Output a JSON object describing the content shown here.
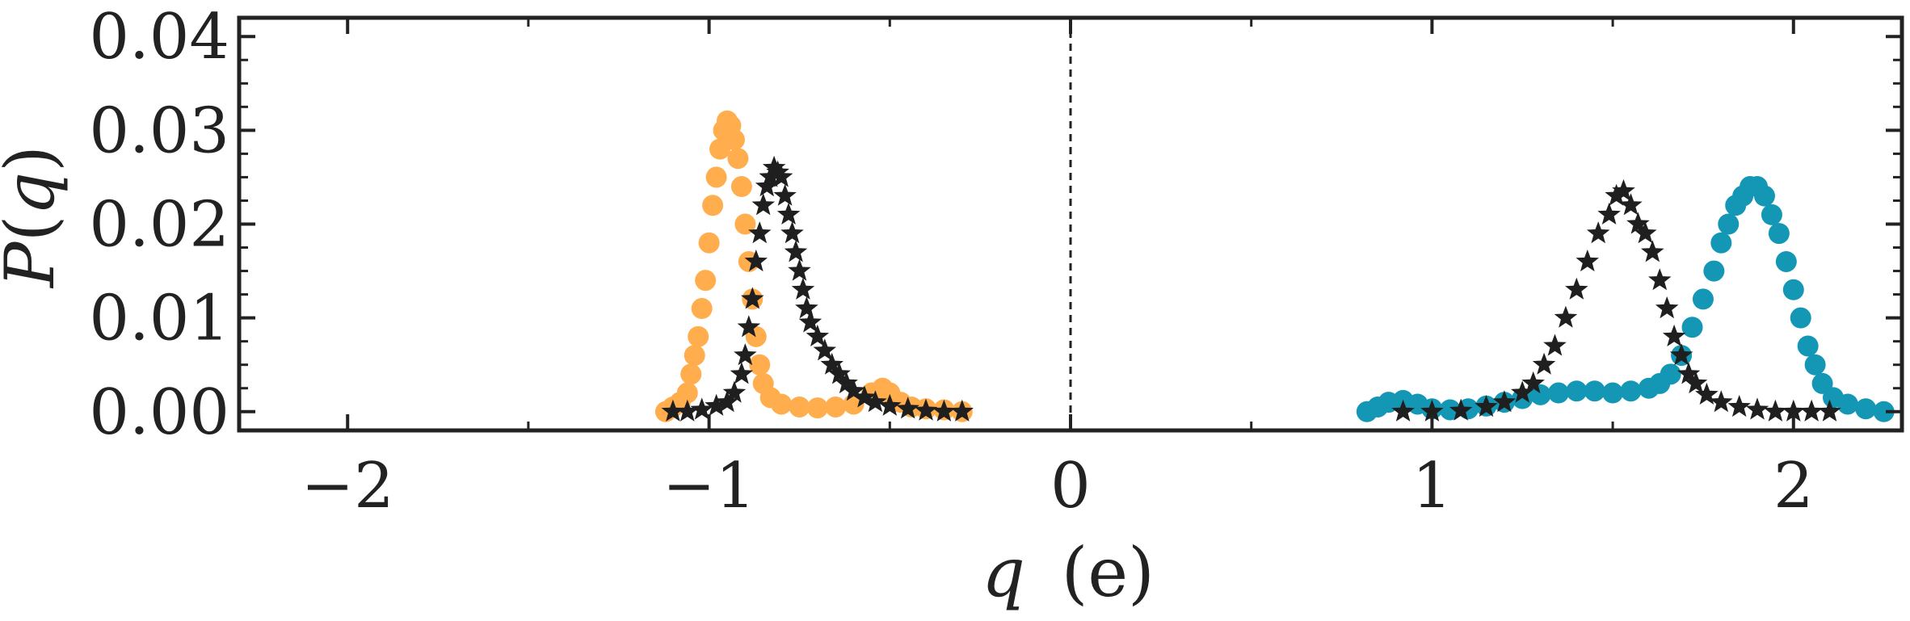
{
  "chart_data": {
    "type": "scatter",
    "title": "",
    "xlabel_var": "q",
    "xlabel_unit": "(e)",
    "ylabel_func": "P",
    "ylabel_var": "q",
    "xlim": [
      -2.3,
      2.3
    ],
    "ylim": [
      -0.002,
      0.042
    ],
    "x_ticks": [
      -2,
      -1,
      0,
      1,
      2
    ],
    "x_tick_labels": [
      "−2",
      "−1",
      "0",
      "1",
      "2"
    ],
    "y_ticks": [
      0.0,
      0.01,
      0.02,
      0.03,
      0.04
    ],
    "y_tick_labels": [
      "0.00",
      "0.01",
      "0.02",
      "0.03",
      "0.04"
    ],
    "vline_x": 0,
    "grid": false,
    "legend": "none",
    "series": [
      {
        "marker": "circle",
        "color": "#ffad4d",
        "points": [
          [
            -1.12,
            0.0
          ],
          [
            -1.1,
            0.0005
          ],
          [
            -1.08,
            0.001
          ],
          [
            -1.06,
            0.002
          ],
          [
            -1.05,
            0.004
          ],
          [
            -1.04,
            0.006
          ],
          [
            -1.03,
            0.008
          ],
          [
            -1.02,
            0.011
          ],
          [
            -1.01,
            0.014
          ],
          [
            -1.0,
            0.018
          ],
          [
            -0.99,
            0.022
          ],
          [
            -0.98,
            0.025
          ],
          [
            -0.97,
            0.028
          ],
          [
            -0.96,
            0.03
          ],
          [
            -0.95,
            0.031
          ],
          [
            -0.94,
            0.0305
          ],
          [
            -0.93,
            0.029
          ],
          [
            -0.92,
            0.027
          ],
          [
            -0.91,
            0.024
          ],
          [
            -0.9,
            0.02
          ],
          [
            -0.89,
            0.016
          ],
          [
            -0.88,
            0.012
          ],
          [
            -0.87,
            0.008
          ],
          [
            -0.86,
            0.005
          ],
          [
            -0.85,
            0.003
          ],
          [
            -0.83,
            0.0015
          ],
          [
            -0.8,
            0.0008
          ],
          [
            -0.75,
            0.0005
          ],
          [
            -0.7,
            0.0004
          ],
          [
            -0.65,
            0.0005
          ],
          [
            -0.6,
            0.0008
          ],
          [
            -0.55,
            0.002
          ],
          [
            -0.52,
            0.0025
          ],
          [
            -0.5,
            0.002
          ],
          [
            -0.47,
            0.001
          ],
          [
            -0.44,
            0.0005
          ],
          [
            -0.4,
            0.0003
          ],
          [
            -0.35,
            0.0002
          ],
          [
            -0.3,
            0.0
          ]
        ]
      },
      {
        "marker": "star",
        "color": "#1f1f1f",
        "points": [
          [
            -1.1,
            0.0
          ],
          [
            -1.06,
            0.0
          ],
          [
            -1.02,
            0.0002
          ],
          [
            -0.98,
            0.0006
          ],
          [
            -0.95,
            0.001
          ],
          [
            -0.93,
            0.002
          ],
          [
            -0.91,
            0.004
          ],
          [
            -0.9,
            0.006
          ],
          [
            -0.89,
            0.009
          ],
          [
            -0.88,
            0.012
          ],
          [
            -0.87,
            0.016
          ],
          [
            -0.86,
            0.019
          ],
          [
            -0.85,
            0.022
          ],
          [
            -0.84,
            0.024
          ],
          [
            -0.83,
            0.025
          ],
          [
            -0.82,
            0.026
          ],
          [
            -0.81,
            0.0255
          ],
          [
            -0.8,
            0.025
          ],
          [
            -0.79,
            0.023
          ],
          [
            -0.78,
            0.021
          ],
          [
            -0.77,
            0.019
          ],
          [
            -0.76,
            0.017
          ],
          [
            -0.75,
            0.015
          ],
          [
            -0.74,
            0.013
          ],
          [
            -0.73,
            0.011
          ],
          [
            -0.72,
            0.0095
          ],
          [
            -0.7,
            0.008
          ],
          [
            -0.68,
            0.0065
          ],
          [
            -0.66,
            0.005
          ],
          [
            -0.64,
            0.004
          ],
          [
            -0.62,
            0.003
          ],
          [
            -0.6,
            0.0022
          ],
          [
            -0.57,
            0.0015
          ],
          [
            -0.54,
            0.001
          ],
          [
            -0.5,
            0.0006
          ],
          [
            -0.45,
            0.0003
          ],
          [
            -0.4,
            0.0001
          ],
          [
            -0.35,
            0.0
          ],
          [
            -0.3,
            0.0
          ],
          [
            0.92,
            0.0
          ],
          [
            1.0,
            0.0
          ],
          [
            1.08,
            0.0001
          ],
          [
            1.15,
            0.0005
          ],
          [
            1.2,
            0.001
          ],
          [
            1.25,
            0.002
          ],
          [
            1.28,
            0.003
          ],
          [
            1.31,
            0.005
          ],
          [
            1.34,
            0.007
          ],
          [
            1.37,
            0.01
          ],
          [
            1.4,
            0.013
          ],
          [
            1.43,
            0.016
          ],
          [
            1.46,
            0.019
          ],
          [
            1.49,
            0.021
          ],
          [
            1.51,
            0.023
          ],
          [
            1.53,
            0.0235
          ],
          [
            1.55,
            0.022
          ],
          [
            1.57,
            0.02
          ],
          [
            1.59,
            0.019
          ],
          [
            1.61,
            0.017
          ],
          [
            1.63,
            0.014
          ],
          [
            1.65,
            0.011
          ],
          [
            1.67,
            0.008
          ],
          [
            1.69,
            0.006
          ],
          [
            1.71,
            0.004
          ],
          [
            1.73,
            0.003
          ],
          [
            1.76,
            0.0018
          ],
          [
            1.8,
            0.001
          ],
          [
            1.85,
            0.0005
          ],
          [
            1.9,
            0.0002
          ],
          [
            1.95,
            0.0
          ],
          [
            2.0,
            0.0
          ],
          [
            2.05,
            0.0
          ],
          [
            2.1,
            0.0
          ]
        ]
      },
      {
        "marker": "circle",
        "color": "#1497b5",
        "points": [
          [
            0.82,
            0.0
          ],
          [
            0.85,
            0.0005
          ],
          [
            0.88,
            0.001
          ],
          [
            0.92,
            0.0012
          ],
          [
            0.96,
            0.0008
          ],
          [
            1.0,
            0.0003
          ],
          [
            1.05,
            0.0002
          ],
          [
            1.1,
            0.0003
          ],
          [
            1.15,
            0.0006
          ],
          [
            1.2,
            0.001
          ],
          [
            1.25,
            0.0014
          ],
          [
            1.3,
            0.0018
          ],
          [
            1.35,
            0.002
          ],
          [
            1.4,
            0.0022
          ],
          [
            1.45,
            0.0022
          ],
          [
            1.5,
            0.002
          ],
          [
            1.55,
            0.0022
          ],
          [
            1.6,
            0.0025
          ],
          [
            1.63,
            0.003
          ],
          [
            1.66,
            0.004
          ],
          [
            1.69,
            0.006
          ],
          [
            1.72,
            0.009
          ],
          [
            1.75,
            0.012
          ],
          [
            1.78,
            0.015
          ],
          [
            1.8,
            0.018
          ],
          [
            1.82,
            0.02
          ],
          [
            1.84,
            0.022
          ],
          [
            1.86,
            0.023
          ],
          [
            1.88,
            0.024
          ],
          [
            1.9,
            0.024
          ],
          [
            1.92,
            0.023
          ],
          [
            1.94,
            0.021
          ],
          [
            1.96,
            0.019
          ],
          [
            1.98,
            0.016
          ],
          [
            2.0,
            0.013
          ],
          [
            2.02,
            0.01
          ],
          [
            2.04,
            0.007
          ],
          [
            2.06,
            0.005
          ],
          [
            2.08,
            0.003
          ],
          [
            2.11,
            0.0015
          ],
          [
            2.15,
            0.0008
          ],
          [
            2.2,
            0.0003
          ],
          [
            2.25,
            0.0
          ]
        ]
      }
    ]
  }
}
